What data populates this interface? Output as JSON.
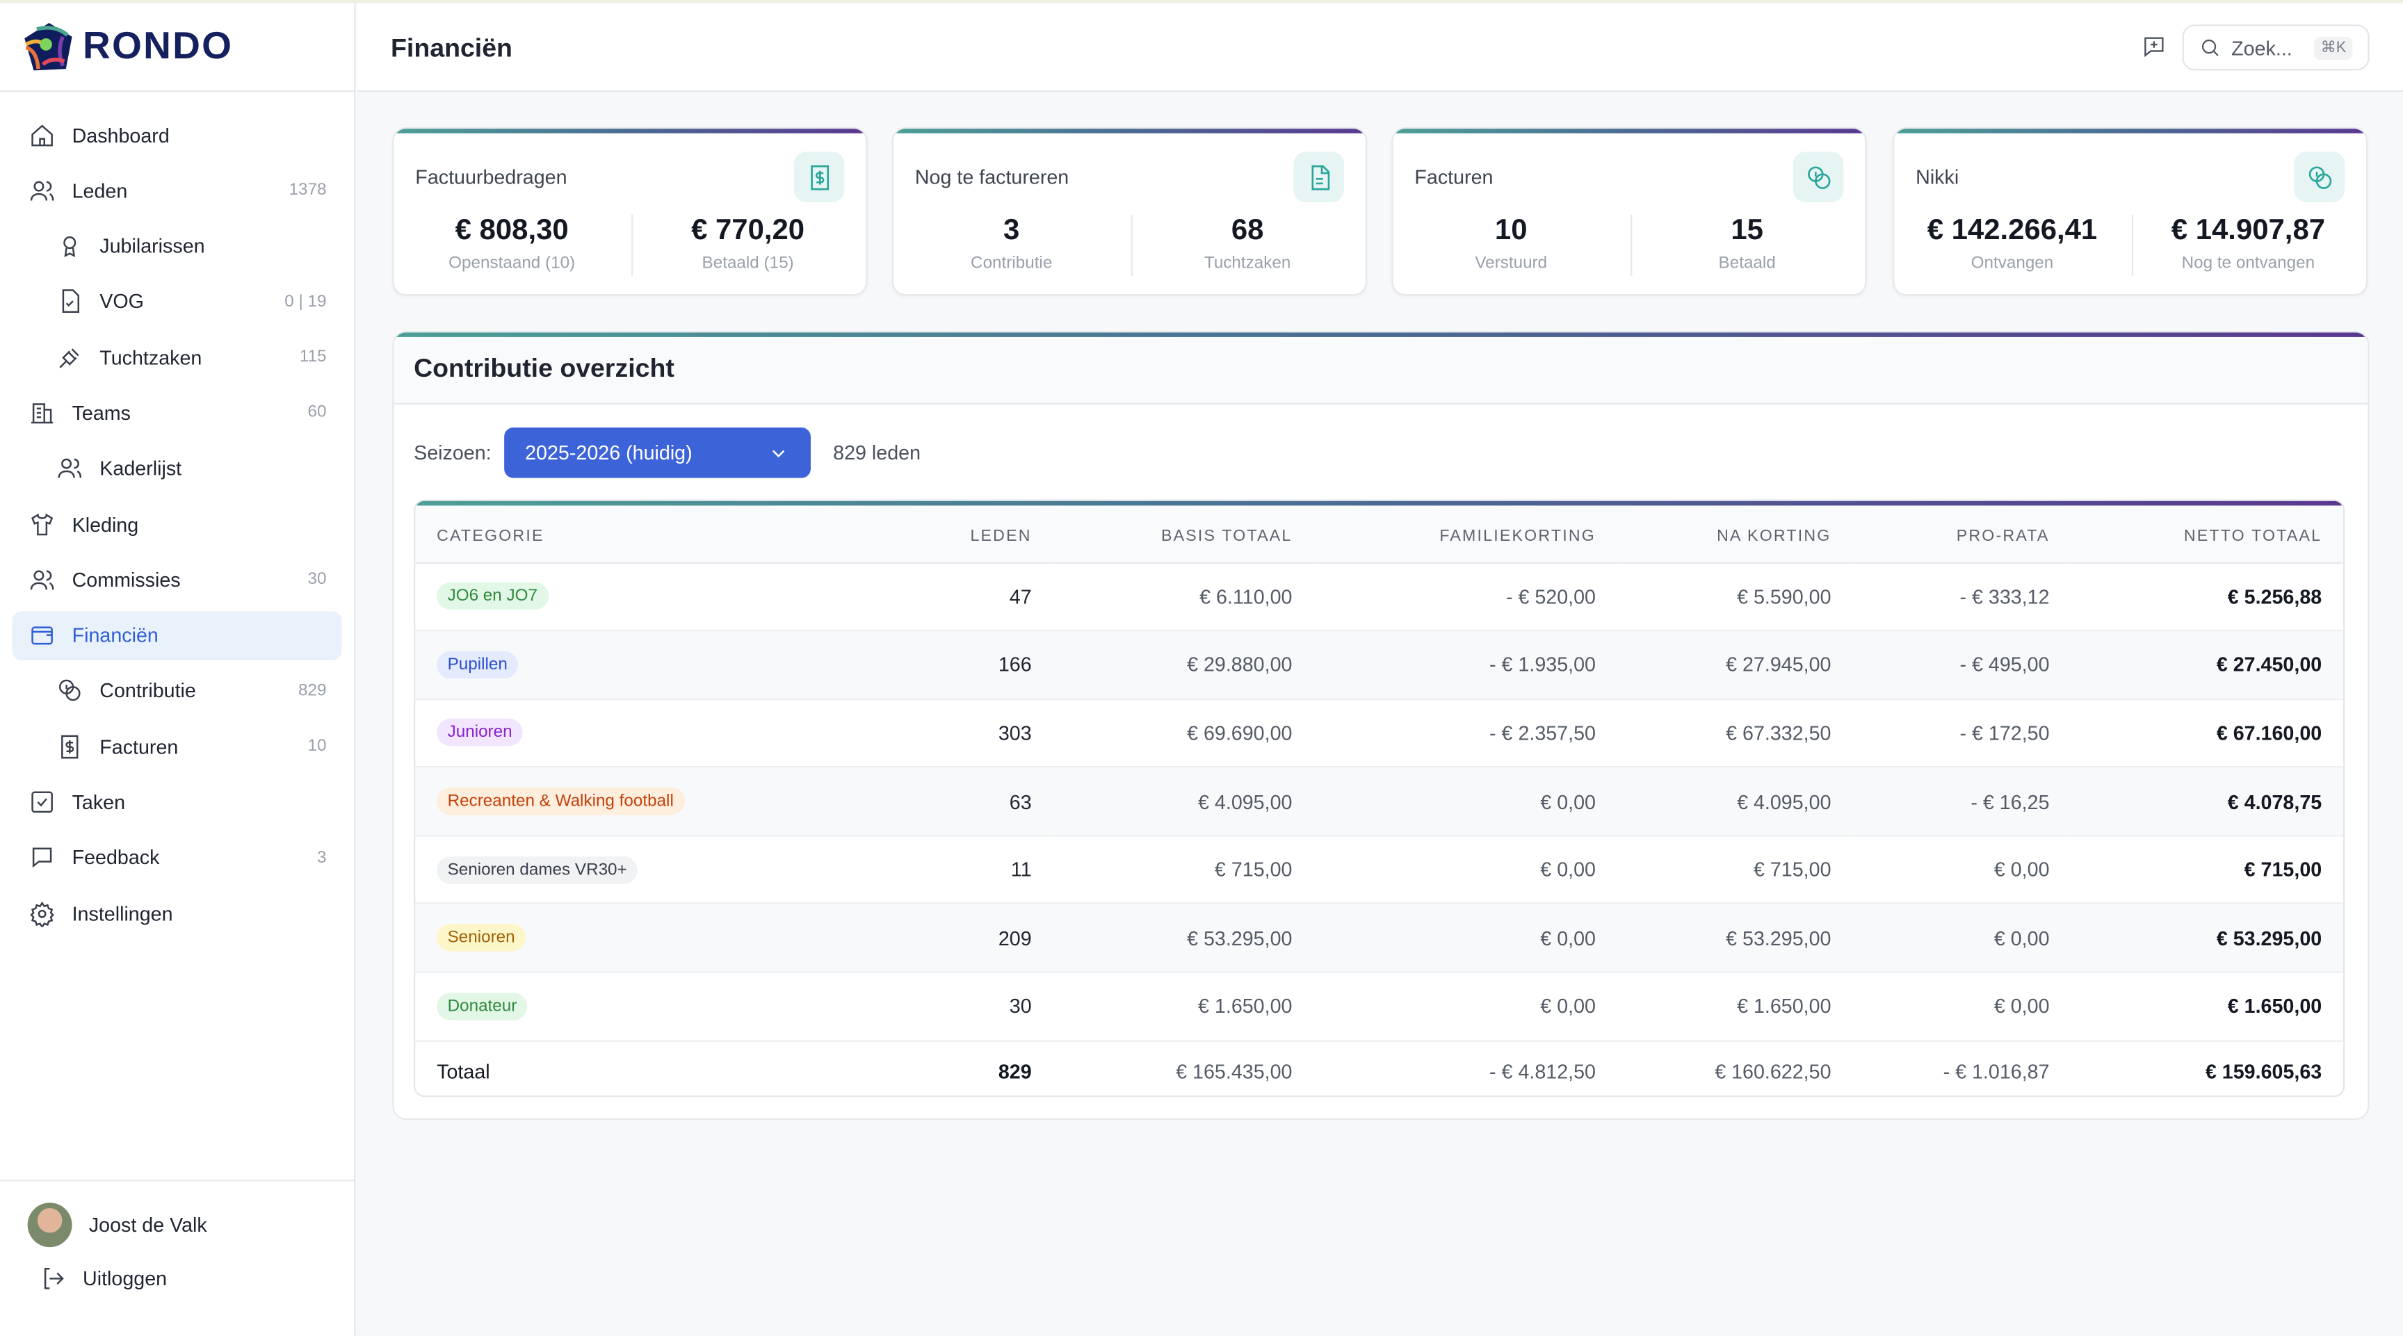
{
  "app": {
    "logo_text": "RONDO"
  },
  "sidebar": {
    "items": [
      {
        "label": "Dashboard",
        "count": "",
        "icon": "home-icon",
        "sub": false
      },
      {
        "label": "Leden",
        "count": "1378",
        "icon": "users-icon",
        "sub": false
      },
      {
        "label": "Jubilarissen",
        "count": "",
        "icon": "award-icon",
        "sub": true
      },
      {
        "label": "VOG",
        "count": "0 | 19",
        "icon": "file-check-icon",
        "sub": true
      },
      {
        "label": "Tuchtzaken",
        "count": "115",
        "icon": "gavel-icon",
        "sub": true
      },
      {
        "label": "Teams",
        "count": "60",
        "icon": "building-icon",
        "sub": false
      },
      {
        "label": "Kaderlijst",
        "count": "",
        "icon": "users-icon",
        "sub": true
      },
      {
        "label": "Kleding",
        "count": "",
        "icon": "shirt-icon",
        "sub": false
      },
      {
        "label": "Commissies",
        "count": "30",
        "icon": "users-icon",
        "sub": false
      },
      {
        "label": "Financiën",
        "count": "",
        "icon": "wallet-icon",
        "sub": false,
        "active": true
      },
      {
        "label": "Contributie",
        "count": "829",
        "icon": "coins-icon",
        "sub": true
      },
      {
        "label": "Facturen",
        "count": "10",
        "icon": "receipt-icon",
        "sub": true
      },
      {
        "label": "Taken",
        "count": "",
        "icon": "checkbox-icon",
        "sub": false
      },
      {
        "label": "Feedback",
        "count": "3",
        "icon": "message-icon",
        "sub": false
      },
      {
        "label": "Instellingen",
        "count": "",
        "icon": "gear-icon",
        "sub": false
      }
    ],
    "user": "Joost de Valk",
    "logout": "Uitloggen"
  },
  "header": {
    "title": "Financiën",
    "search_placeholder": "Zoek...",
    "search_shortcut": "⌘K"
  },
  "cards": [
    {
      "title": "Factuurbedragen",
      "icon": "receipt-dollar-icon",
      "stats": [
        {
          "value": "€ 808,30",
          "label": "Openstaand (10)"
        },
        {
          "value": "€ 770,20",
          "label": "Betaald (15)"
        }
      ]
    },
    {
      "title": "Nog te factureren",
      "icon": "document-icon",
      "stats": [
        {
          "value": "3",
          "label": "Contributie"
        },
        {
          "value": "68",
          "label": "Tuchtzaken"
        }
      ]
    },
    {
      "title": "Facturen",
      "icon": "coins-icon",
      "stats": [
        {
          "value": "10",
          "label": "Verstuurd"
        },
        {
          "value": "15",
          "label": "Betaald"
        }
      ]
    },
    {
      "title": "Nikki",
      "icon": "coins-icon",
      "stats": [
        {
          "value": "€ 142.266,41",
          "label": "Ontvangen"
        },
        {
          "value": "€ 14.907,87",
          "label": "Nog te ontvangen"
        }
      ]
    }
  ],
  "overview": {
    "title": "Contributie overzicht",
    "season_label": "Seizoen:",
    "season_value": "2025-2026 (huidig)",
    "member_count": "829 leden",
    "columns": [
      "CATEGORIE",
      "LEDEN",
      "BASIS TOTAAL",
      "FAMILIEKORTING",
      "NA KORTING",
      "PRO-RATA",
      "NETTO TOTAAL"
    ],
    "rows": [
      {
        "category": "JO6 en JO7",
        "color": "#2f8a3e",
        "bg": "#e3f7e6",
        "cells": [
          "47",
          "€ 6.110,00",
          "- € 520,00",
          "€ 5.590,00",
          "- € 333,12",
          "€ 5.256,88"
        ]
      },
      {
        "category": "Pupillen",
        "color": "#2d4fd0",
        "bg": "#e3ebfc",
        "cells": [
          "166",
          "€ 29.880,00",
          "- € 1.935,00",
          "€ 27.945,00",
          "- € 495,00",
          "€ 27.450,00"
        ]
      },
      {
        "category": "Junioren",
        "color": "#8a22c9",
        "bg": "#f1e6fd",
        "cells": [
          "303",
          "€ 69.690,00",
          "- € 2.357,50",
          "€ 67.332,50",
          "- € 172,50",
          "€ 67.160,00"
        ]
      },
      {
        "category": "Recreanten & Walking football",
        "color": "#c2410c",
        "bg": "#fdeedd",
        "cells": [
          "63",
          "€ 4.095,00",
          "€ 0,00",
          "€ 4.095,00",
          "- € 16,25",
          "€ 4.078,75"
        ]
      },
      {
        "category": "Senioren dames VR30+",
        "color": "#3a404c",
        "bg": "#f1f2f4",
        "cells": [
          "11",
          "€ 715,00",
          "€ 0,00",
          "€ 715,00",
          "€ 0,00",
          "€ 715,00"
        ]
      },
      {
        "category": "Senioren",
        "color": "#a16207",
        "bg": "#fdf6c9",
        "cells": [
          "209",
          "€ 53.295,00",
          "€ 0,00",
          "€ 53.295,00",
          "€ 0,00",
          "€ 53.295,00"
        ]
      },
      {
        "category": "Donateur",
        "color": "#2f8a3e",
        "bg": "#e3f7e6",
        "cells": [
          "30",
          "€ 1.650,00",
          "€ 0,00",
          "€ 1.650,00",
          "€ 0,00",
          "€ 1.650,00"
        ]
      }
    ],
    "total": {
      "label": "Totaal",
      "cells": [
        "829",
        "€ 165.435,00",
        "- € 4.812,50",
        "€ 160.622,50",
        "- € 1.016,87",
        "€ 159.605,63"
      ]
    }
  },
  "colors": {
    "accent": "#3d63d8",
    "teal": "#2aa59a",
    "gradient_start": "#4c9f96",
    "gradient_end": "#5a3890"
  }
}
